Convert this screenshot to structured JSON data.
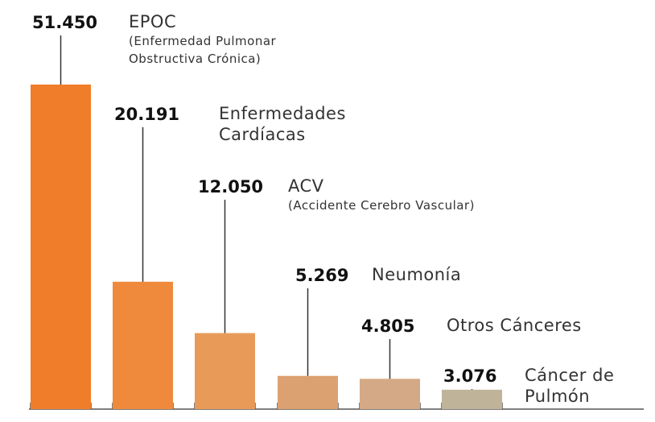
{
  "chart_data": {
    "type": "bar",
    "categories": [
      "EPOC",
      "Enfermedades Cardíacas",
      "ACV",
      "Neumonía",
      "Otros Cánceres",
      "Cáncer de Pulmón"
    ],
    "descriptions": [
      "(Enfermedad Pulmonar Obstructiva Crónica)",
      null,
      "(Accidente Cerebro Vascular)",
      null,
      null,
      null
    ],
    "values": [
      51450,
      20191,
      12050,
      5269,
      4805,
      3076
    ],
    "value_labels": [
      "51.450",
      "20.191",
      "12.050",
      "5.269",
      "4.805",
      "3.076"
    ],
    "colors": [
      "#f07d2a",
      "#ef8a3c",
      "#e89b58",
      "#dca171",
      "#d4a985",
      "#bfb49a"
    ]
  }
}
